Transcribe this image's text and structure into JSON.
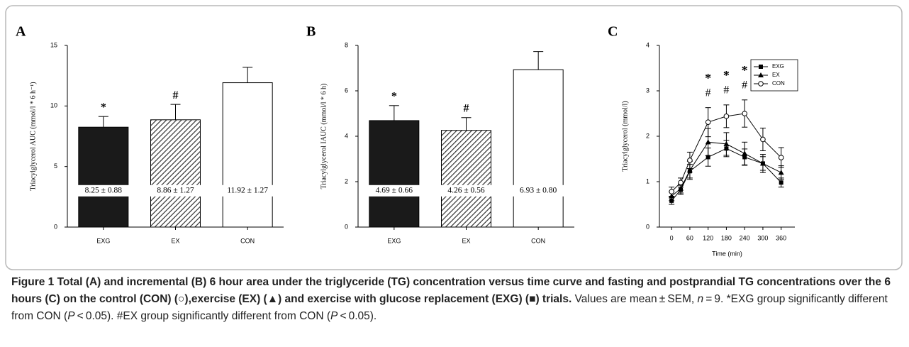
{
  "chart_data": [
    {
      "type": "bar",
      "panel": "A",
      "ylabel": "Triacylglycerol AUC (mmol/l * 6 h⁻¹)",
      "categories": [
        "EXG",
        "EX",
        "CON"
      ],
      "values": [
        8.25,
        8.86,
        11.92
      ],
      "errors": [
        0.88,
        1.27,
        1.27
      ],
      "value_labels": [
        "8.25 ± 0.88",
        "8.86 ± 1.27",
        "11.92 ± 1.27"
      ],
      "annotations": [
        "*",
        "#",
        null
      ],
      "fills": [
        "solid",
        "hatch",
        "empty"
      ],
      "color": "#1a1a1a",
      "ylim": [
        0,
        15
      ],
      "yticks": [
        0,
        5,
        10,
        15
      ]
    },
    {
      "type": "bar",
      "panel": "B",
      "ylabel": "Triacylglycerol IAUC (mmol/l * 6 h)",
      "categories": [
        "EXG",
        "EX",
        "CON"
      ],
      "values": [
        4.69,
        4.26,
        6.93
      ],
      "errors": [
        0.66,
        0.56,
        0.8
      ],
      "value_labels": [
        "4.69 ± 0.66",
        "4.26 ± 0.56",
        "6.93 ± 0.80"
      ],
      "annotations": [
        "*",
        "#",
        null
      ],
      "fills": [
        "solid",
        "hatch",
        "empty"
      ],
      "color": "#1a1a1a",
      "ylim": [
        0,
        8
      ],
      "yticks": [
        0,
        2,
        4,
        6,
        8
      ]
    },
    {
      "type": "line",
      "panel": "C",
      "ylabel": "Triacylglycerol  (mmol/l)",
      "xlabel": "Time (min)",
      "x": [
        0,
        30,
        60,
        120,
        180,
        240,
        300,
        360
      ],
      "series": [
        {
          "name": "EXG",
          "color": "#000000",
          "marker": "square",
          "values": [
            0.58,
            0.82,
            1.23,
            1.54,
            1.73,
            1.54,
            1.4,
            0.98
          ],
          "errors": [
            0.08,
            0.1,
            0.15,
            0.2,
            0.18,
            0.18,
            0.15,
            0.1
          ]
        },
        {
          "name": "EX",
          "color": "#000000",
          "marker": "triangle",
          "values": [
            0.68,
            0.85,
            1.25,
            1.87,
            1.83,
            1.62,
            1.4,
            1.2
          ],
          "errors": [
            0.1,
            0.1,
            0.2,
            0.3,
            0.25,
            0.25,
            0.2,
            0.15
          ]
        },
        {
          "name": "CON",
          "color": "#000000",
          "marker": "open-circle",
          "values": [
            0.78,
            0.98,
            1.47,
            2.31,
            2.44,
            2.5,
            1.93,
            1.53
          ],
          "errors": [
            0.1,
            0.1,
            0.18,
            0.32,
            0.25,
            0.3,
            0.25,
            0.22
          ]
        }
      ],
      "annotations": [
        null,
        null,
        null,
        "*",
        "*",
        "*",
        null,
        null
      ],
      "annotations2": [
        null,
        null,
        null,
        "#",
        "#",
        "#",
        null,
        null
      ],
      "xlim": [
        -40,
        405
      ],
      "xticks": [
        0,
        60,
        120,
        180,
        240,
        300,
        360
      ],
      "ylim": [
        0,
        4
      ],
      "yticks": [
        0,
        1,
        2,
        3,
        4
      ],
      "legend": "upper right"
    }
  ],
  "caption": [
    {
      "text": "Figure 1 Total (A) and incremental (B) 6 hour area under the triglyceride (TG) concentration versus time curve and fasting and postprandial TG concentrations over the 6 hours (C) on the control (CON) (○),exercise (EX) (▲) and exercise with glucose replacement (EXG) (■) trials.",
      "style": "bold"
    },
    {
      "text": " Values are mean ± SEM, ",
      "style": "normal"
    },
    {
      "text": "n",
      "style": "italic"
    },
    {
      "text": " = 9. *EXG group significantly different from CON (",
      "style": "normal"
    },
    {
      "text": "P",
      "style": "italic"
    },
    {
      "text": " < 0.05). #EX group significantly different from CON (",
      "style": "normal"
    },
    {
      "text": "P",
      "style": "italic"
    },
    {
      "text": " < 0.05).",
      "style": "normal"
    }
  ]
}
